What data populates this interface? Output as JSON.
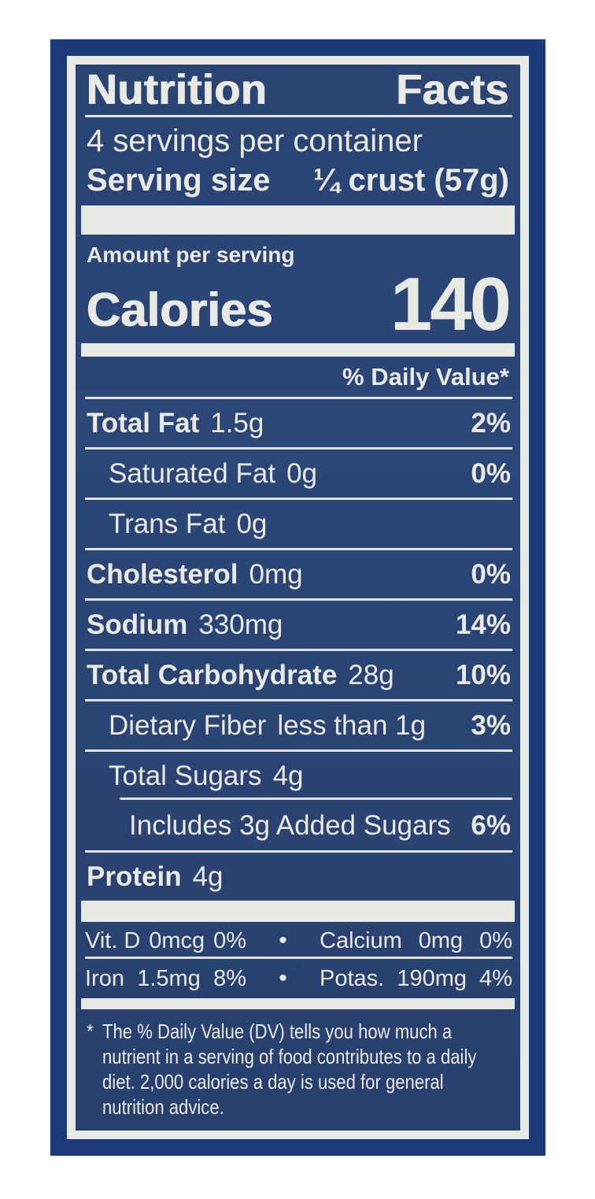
{
  "label": {
    "title_word_1": "Nutrition",
    "title_word_2": "Facts",
    "servings_per_container": "4 servings per container",
    "serving_size_label": "Serving size",
    "serving_size_value": "¼ crust (57g)",
    "amount_per_serving": "Amount per serving",
    "calories_label": "Calories",
    "calories_value": "140",
    "daily_value_header": "% Daily Value*",
    "rows": [
      {
        "name": "Total Fat",
        "amount": "1.5g",
        "dv": "2%"
      },
      {
        "name": "Saturated Fat",
        "amount": "0g",
        "dv": "0%"
      },
      {
        "name": "Trans Fat",
        "amount": "0g",
        "dv": ""
      },
      {
        "name": "Cholesterol",
        "amount": "0mg",
        "dv": "0%"
      },
      {
        "name": "Sodium",
        "amount": "330mg",
        "dv": "14%"
      },
      {
        "name": "Total Carbohydrate",
        "amount": "28g",
        "dv": "10%"
      },
      {
        "name": "Dietary Fiber",
        "amount": "less than 1g",
        "dv": "3%"
      },
      {
        "name": "Total Sugars",
        "amount": "4g",
        "dv": ""
      },
      {
        "name": "Includes 3g Added Sugars",
        "amount": "",
        "dv": "6%"
      },
      {
        "name": "Protein",
        "amount": "4g",
        "dv": ""
      }
    ],
    "vitamins": [
      {
        "left_name": "Vit. D",
        "left_amount": "0mcg",
        "left_dv": "0%",
        "bullet": "•",
        "right_name": "Calcium",
        "right_amount": "0mg",
        "right_dv": "0%"
      },
      {
        "left_name": "Iron",
        "left_amount": "1.5mg",
        "left_dv": "8%",
        "bullet": "•",
        "right_name": "Potas.",
        "right_amount": "190mg",
        "right_dv": "4%"
      }
    ],
    "footnote_marker": "*",
    "footnote_lines": [
      "The % Daily Value (DV) tells you how much a",
      "nutrient in a serving of food contributes to a daily",
      "diet. 2,000 calories a day is used for general",
      "nutrition advice."
    ],
    "colors": {
      "outer_blue": "#1d3a78",
      "panel_blue": "#2b4677",
      "off_white": "#e9eae4"
    }
  }
}
